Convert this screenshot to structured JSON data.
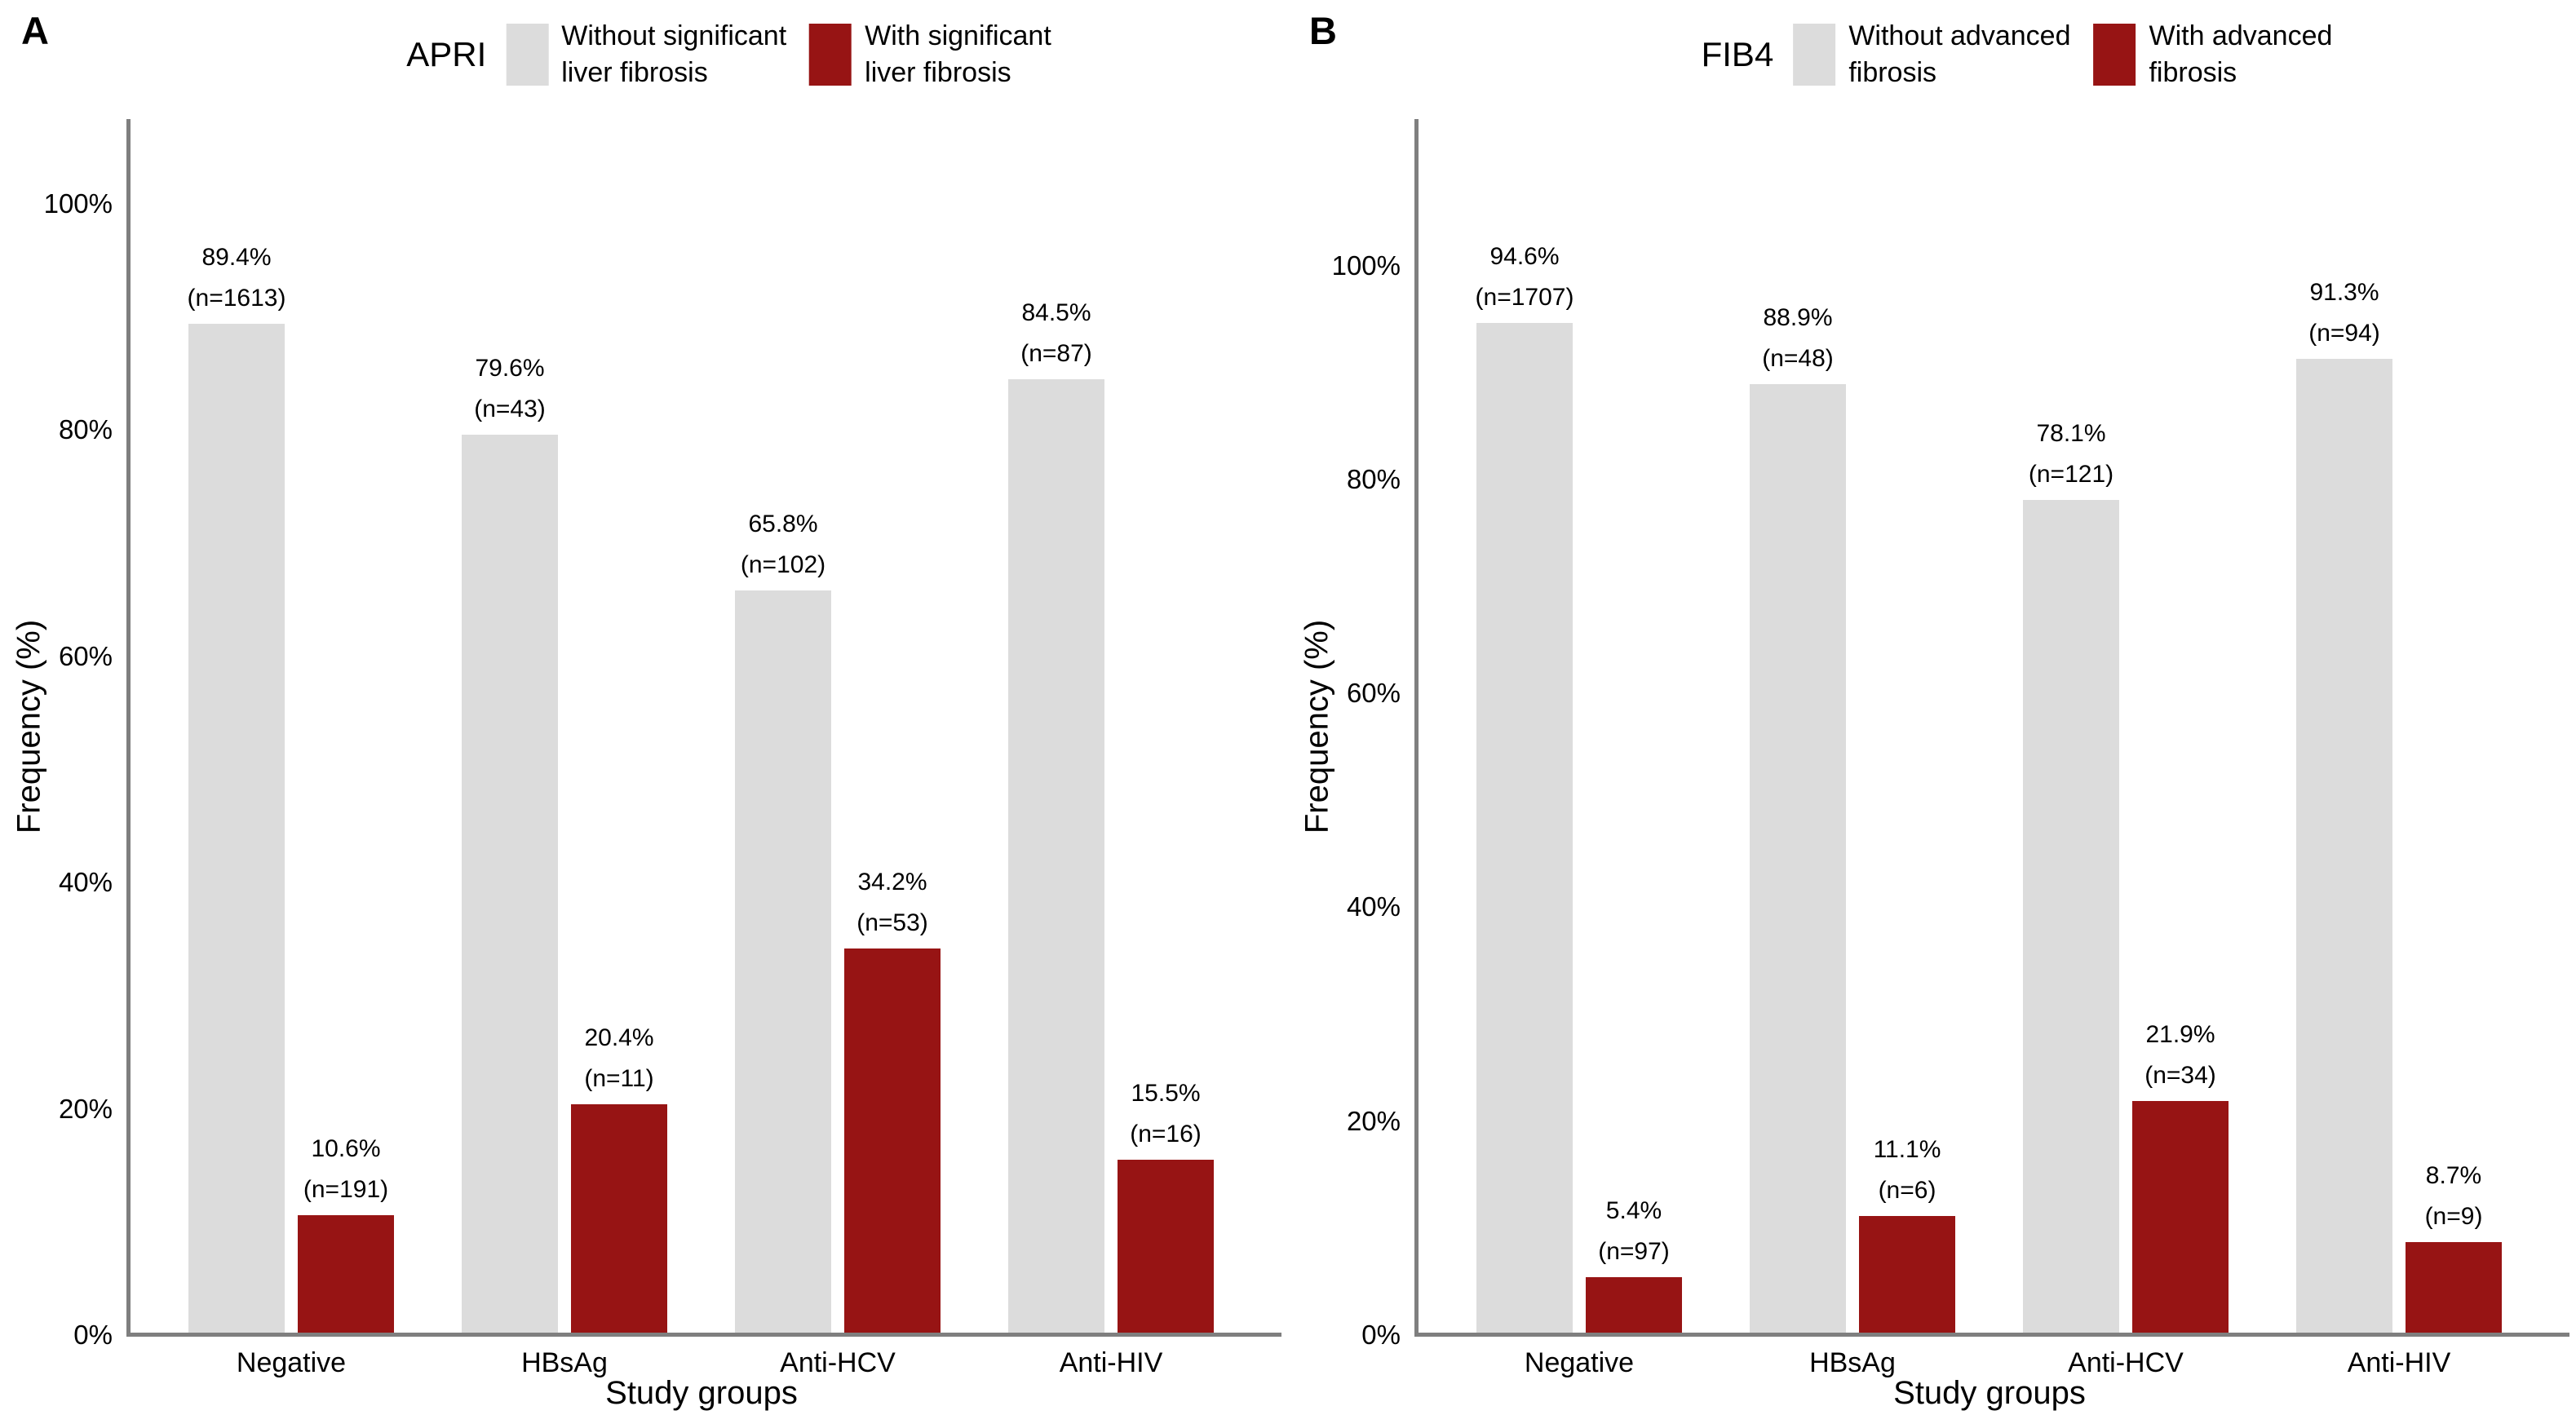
{
  "figure": {
    "background": "#ffffff",
    "axis_line_color": "#7f7f7f",
    "text_color": "#000000"
  },
  "chart_data": [
    {
      "panel_label": "A",
      "type": "bar",
      "title": "APRI",
      "categories": [
        "Negative",
        "HBsAg",
        "Anti-HCV",
        "Anti-HIV"
      ],
      "series": [
        {
          "name": "Without significant liver fibrosis",
          "name_lines": [
            "Without significant",
            "liver fibrosis"
          ],
          "color": "#dcdcdc",
          "values": [
            89.4,
            79.6,
            65.8,
            84.5
          ],
          "counts": [
            1613,
            43,
            102,
            87
          ]
        },
        {
          "name": "With significant liver fibrosis",
          "name_lines": [
            "With significant",
            "liver fibrosis"
          ],
          "color": "#971414",
          "values": [
            10.6,
            20.4,
            34.2,
            15.5
          ],
          "counts": [
            191,
            11,
            53,
            16
          ]
        }
      ],
      "xlabel": "Study groups",
      "ylabel": "Frequency (%)",
      "yticks": [
        "0%",
        "20%",
        "40%",
        "60%",
        "80%",
        "100%"
      ],
      "ylim": [
        0,
        107.5
      ],
      "grid": false,
      "legend_position": "top"
    },
    {
      "panel_label": "B",
      "type": "bar",
      "title": "FIB4",
      "categories": [
        "Negative",
        "HBsAg",
        "Anti-HCV",
        "Anti-HIV"
      ],
      "series": [
        {
          "name": "Without advanced fibrosis",
          "name_lines": [
            "Without advanced",
            "fibrosis"
          ],
          "color": "#dcdcdc",
          "values": [
            94.6,
            88.9,
            78.1,
            91.3
          ],
          "counts": [
            1707,
            48,
            121,
            94
          ]
        },
        {
          "name": "With advanced fibrosis",
          "name_lines": [
            "With advanced",
            "fibrosis"
          ],
          "color": "#971414",
          "values": [
            5.4,
            11.1,
            21.9,
            8.7
          ],
          "counts": [
            97,
            6,
            34,
            9
          ]
        }
      ],
      "xlabel": "Study groups",
      "ylabel": "Frequency (%)",
      "yticks": [
        "0%",
        "20%",
        "40%",
        "60%",
        "80%",
        "100%"
      ],
      "ylim": [
        0,
        113.7
      ],
      "grid": false,
      "legend_position": "top"
    }
  ]
}
